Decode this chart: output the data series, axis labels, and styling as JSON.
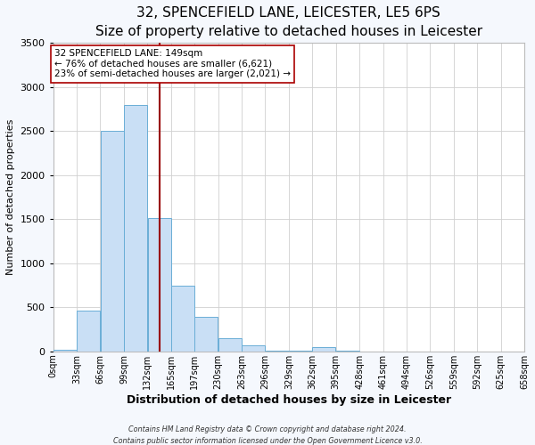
{
  "title": "32, SPENCEFIELD LANE, LEICESTER, LE5 6PS",
  "subtitle": "Size of property relative to detached houses in Leicester",
  "xlabel": "Distribution of detached houses by size in Leicester",
  "ylabel": "Number of detached properties",
  "footer_line1": "Contains HM Land Registry data © Crown copyright and database right 2024.",
  "footer_line2": "Contains public sector information licensed under the Open Government Licence v3.0.",
  "bin_edges": [
    0,
    33,
    66,
    99,
    132,
    165,
    198,
    231,
    264,
    297,
    330,
    363,
    396,
    429,
    462,
    495,
    528,
    561,
    594,
    627,
    660
  ],
  "bin_labels": [
    "0sqm",
    "33sqm",
    "66sqm",
    "99sqm",
    "132sqm",
    "165sqm",
    "197sqm",
    "230sqm",
    "263sqm",
    "296sqm",
    "329sqm",
    "362sqm",
    "395sqm",
    "428sqm",
    "461sqm",
    "494sqm",
    "526sqm",
    "559sqm",
    "592sqm",
    "625sqm",
    "658sqm"
  ],
  "counts": [
    20,
    460,
    2500,
    2800,
    1510,
    750,
    390,
    150,
    70,
    10,
    5,
    50,
    5,
    0,
    0,
    0,
    0,
    0,
    0,
    0
  ],
  "bar_facecolor": "#c9dff5",
  "bar_edgecolor": "#6aaed6",
  "property_line_x": 149,
  "property_line_color": "#990000",
  "annotation_line1": "32 SPENCEFIELD LANE: 149sqm",
  "annotation_line2": "← 76% of detached houses are smaller (6,621)",
  "annotation_line3": "23% of semi-detached houses are larger (2,021) →",
  "annotation_box_facecolor": "#ffffff",
  "annotation_box_edgecolor": "#aa0000",
  "ylim": [
    0,
    3500
  ],
  "yticks": [
    0,
    500,
    1000,
    1500,
    2000,
    2500,
    3000,
    3500
  ],
  "grid_color": "#d0d0d0",
  "plot_bg_color": "#ffffff",
  "fig_bg_color": "#f5f8fd",
  "title_fontsize": 11,
  "subtitle_fontsize": 9.5,
  "xlabel_fontsize": 9,
  "ylabel_fontsize": 8,
  "annotation_fontsize": 7.5,
  "tick_fontsize": 7,
  "ytick_fontsize": 8
}
